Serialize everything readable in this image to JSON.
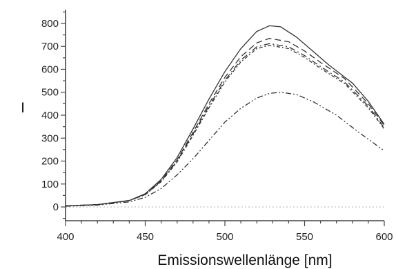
{
  "chart_data": {
    "type": "line",
    "title": "",
    "xlabel": "Emissionswellenlänge [nm]",
    "ylabel": "I",
    "xlim": [
      400,
      600
    ],
    "ylim": [
      -60,
      860
    ],
    "x_ticks": [
      400,
      450,
      500,
      550,
      600
    ],
    "y_ticks": [
      0,
      100,
      200,
      300,
      400,
      500,
      600,
      700,
      800
    ],
    "baseline": {
      "y": 0,
      "style": "dotted",
      "color": "#bbbbbb"
    },
    "line_color": "#333333",
    "series": [
      {
        "style": "solid",
        "points": [
          [
            400,
            5
          ],
          [
            420,
            10
          ],
          [
            440,
            28
          ],
          [
            450,
            58
          ],
          [
            460,
            120
          ],
          [
            470,
            215
          ],
          [
            480,
            340
          ],
          [
            490,
            470
          ],
          [
            500,
            590
          ],
          [
            510,
            690
          ],
          [
            520,
            765
          ],
          [
            528,
            790
          ],
          [
            535,
            785
          ],
          [
            545,
            740
          ],
          [
            555,
            680
          ],
          [
            565,
            620
          ],
          [
            580,
            540
          ],
          [
            590,
            460
          ],
          [
            600,
            360
          ]
        ]
      },
      {
        "style": "dashed",
        "points": [
          [
            400,
            5
          ],
          [
            420,
            10
          ],
          [
            440,
            28
          ],
          [
            450,
            55
          ],
          [
            460,
            115
          ],
          [
            470,
            205
          ],
          [
            480,
            325
          ],
          [
            490,
            450
          ],
          [
            500,
            565
          ],
          [
            510,
            655
          ],
          [
            520,
            715
          ],
          [
            528,
            735
          ],
          [
            540,
            720
          ],
          [
            550,
            680
          ],
          [
            560,
            630
          ],
          [
            575,
            560
          ],
          [
            590,
            450
          ],
          [
            600,
            355
          ]
        ]
      },
      {
        "style": "dashdot",
        "points": [
          [
            400,
            5
          ],
          [
            420,
            10
          ],
          [
            440,
            28
          ],
          [
            450,
            54
          ],
          [
            460,
            112
          ],
          [
            470,
            200
          ],
          [
            480,
            318
          ],
          [
            490,
            440
          ],
          [
            500,
            552
          ],
          [
            510,
            640
          ],
          [
            520,
            698
          ],
          [
            528,
            712
          ],
          [
            540,
            698
          ],
          [
            550,
            660
          ],
          [
            560,
            612
          ],
          [
            575,
            545
          ],
          [
            590,
            440
          ],
          [
            600,
            345
          ]
        ]
      },
      {
        "style": "dotted-dash",
        "points": [
          [
            400,
            5
          ],
          [
            420,
            10
          ],
          [
            440,
            28
          ],
          [
            450,
            53
          ],
          [
            460,
            110
          ],
          [
            470,
            196
          ],
          [
            480,
            312
          ],
          [
            490,
            432
          ],
          [
            500,
            545
          ],
          [
            510,
            632
          ],
          [
            520,
            690
          ],
          [
            528,
            705
          ],
          [
            540,
            690
          ],
          [
            550,
            652
          ],
          [
            560,
            604
          ],
          [
            575,
            538
          ],
          [
            590,
            432
          ],
          [
            600,
            340
          ]
        ]
      },
      {
        "style": "dash-dot-dot",
        "points": [
          [
            400,
            3
          ],
          [
            420,
            8
          ],
          [
            440,
            22
          ],
          [
            450,
            42
          ],
          [
            460,
            80
          ],
          [
            470,
            140
          ],
          [
            480,
            210
          ],
          [
            490,
            290
          ],
          [
            500,
            370
          ],
          [
            510,
            430
          ],
          [
            520,
            475
          ],
          [
            528,
            495
          ],
          [
            535,
            500
          ],
          [
            545,
            490
          ],
          [
            555,
            460
          ],
          [
            570,
            400
          ],
          [
            585,
            320
          ],
          [
            600,
            245
          ]
        ]
      }
    ]
  }
}
